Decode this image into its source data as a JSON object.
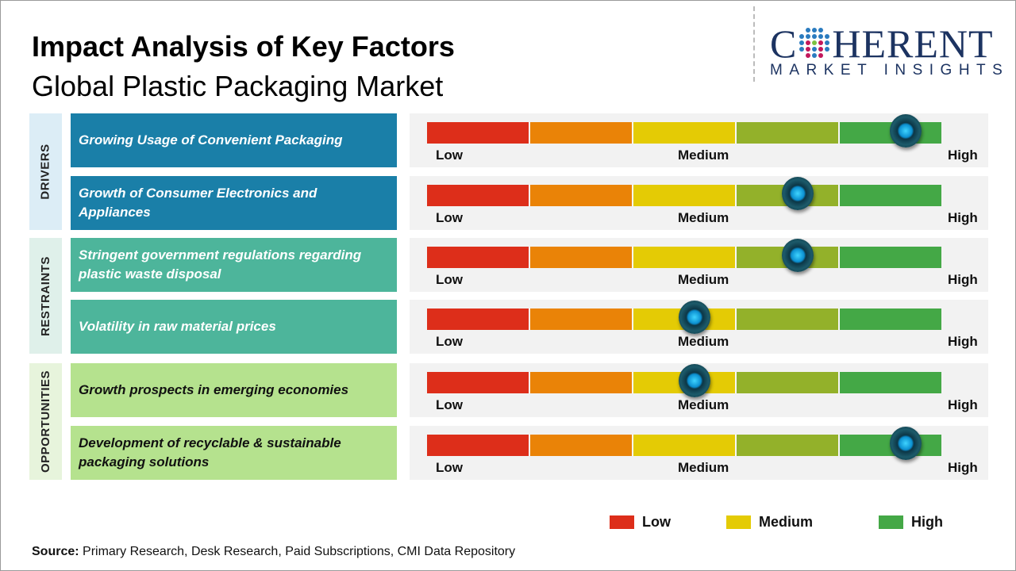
{
  "title": "Impact Analysis of Key Factors",
  "subtitle": "Global Plastic Packaging Market",
  "logo": {
    "top": "COHERENT",
    "bottom": "MARKET INSIGHTS"
  },
  "scale_labels": {
    "low": "Low",
    "medium": "Medium",
    "high": "High"
  },
  "scale_colors": [
    "#dd2e1a",
    "#ea8307",
    "#e4cb05",
    "#93b12a",
    "#44a846"
  ],
  "categories": [
    {
      "name": "DRIVERS",
      "box_color": "#1a7fa8",
      "label_bg": "#dcedf6",
      "text_color": "#ffffff"
    },
    {
      "name": "RESTRAINTS",
      "box_color": "#4db59b",
      "label_bg": "#dff0ea",
      "text_color": "#ffffff"
    },
    {
      "name": "OPPORTUNITIES",
      "box_color": "#b5e28e",
      "label_bg": "#e7f4dc",
      "text_color": "#111111"
    }
  ],
  "factors": [
    {
      "category": 0,
      "text": "Growing Usage of Convenient Packaging",
      "impact_level": 0.93
    },
    {
      "category": 0,
      "text": "Growth of Consumer Electronics and Appliances",
      "impact_level": 0.72
    },
    {
      "category": 1,
      "text": "Stringent government regulations regarding plastic waste disposal",
      "impact_level": 0.72
    },
    {
      "category": 1,
      "text": "Volatility in raw material prices",
      "impact_level": 0.52
    },
    {
      "category": 2,
      "text": "Growth prospects in emerging economies",
      "impact_level": 0.52
    },
    {
      "category": 2,
      "text": "Development of recyclable & sustainable packaging solutions",
      "impact_level": 0.93
    }
  ],
  "legend": [
    {
      "label": "Low",
      "color": "#dd2e1a"
    },
    {
      "label": "Medium",
      "color": "#e4cb05"
    },
    {
      "label": "High",
      "color": "#44a846"
    }
  ],
  "source": {
    "label": "Source:",
    "text": " Primary Research, Desk Research, Paid Subscriptions, CMI Data Repository"
  }
}
